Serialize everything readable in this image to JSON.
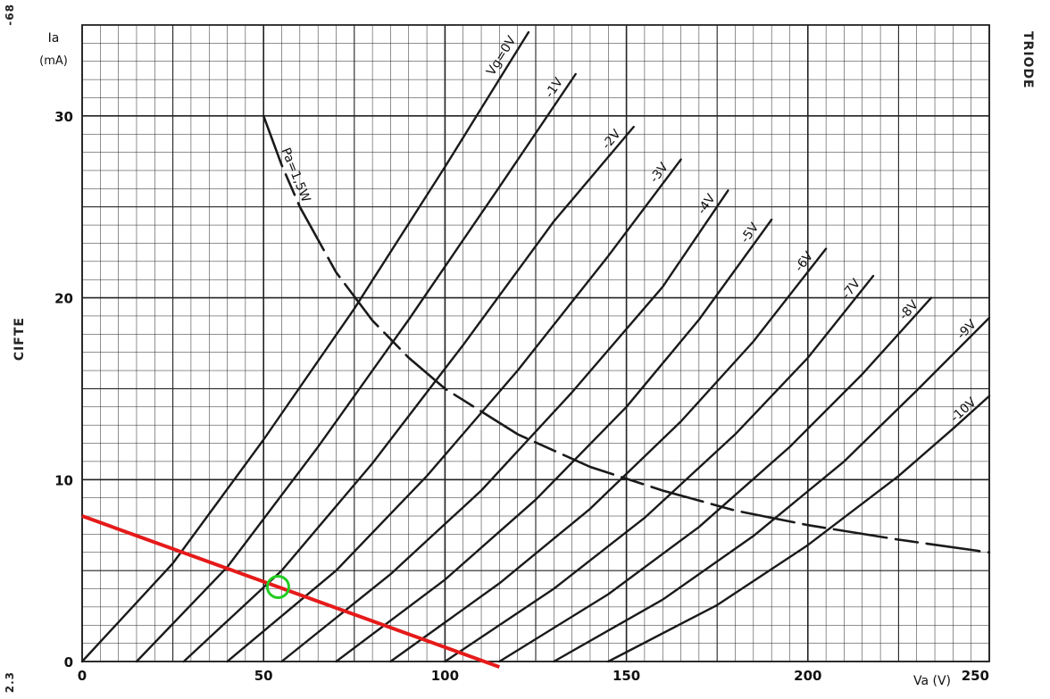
{
  "side_labels": {
    "right": "TRIODE",
    "left": "CIFTE",
    "top_left": "-68",
    "bottom_left": "2.3"
  },
  "chart_data": {
    "type": "line",
    "title": "",
    "xlabel": "Va (V)",
    "ylabel_line1": "Ia",
    "ylabel_line2": "(mA)",
    "xlim": [
      0,
      250
    ],
    "ylim": [
      0,
      35
    ],
    "x_ticks": [
      0,
      50,
      100,
      150,
      200,
      250
    ],
    "y_ticks": [
      0,
      10,
      20,
      30
    ],
    "grid": true,
    "colors": {
      "curves": "#1a1a1a",
      "grid": "#222222",
      "load_line": "#e61a1a",
      "operating_point": "#22cc22"
    },
    "series": [
      {
        "name": "Vg=0V",
        "points": [
          [
            0,
            0
          ],
          [
            25,
            5.4
          ],
          [
            50,
            12.2
          ],
          [
            75,
            19.4
          ],
          [
            100,
            27.2
          ],
          [
            123,
            34.6
          ]
        ]
      },
      {
        "name": "-1V",
        "points": [
          [
            15,
            0
          ],
          [
            40,
            5.2
          ],
          [
            65,
            11.8
          ],
          [
            90,
            18.8
          ],
          [
            115,
            26.1
          ],
          [
            136,
            32.3
          ]
        ]
      },
      {
        "name": "-2V",
        "points": [
          [
            28,
            0
          ],
          [
            55,
            5
          ],
          [
            80,
            10.9
          ],
          [
            105,
            17.4
          ],
          [
            130,
            24.2
          ],
          [
            152,
            29.4
          ]
        ]
      },
      {
        "name": "-3V",
        "points": [
          [
            40,
            0
          ],
          [
            70,
            5
          ],
          [
            95,
            10.2
          ],
          [
            120,
            16
          ],
          [
            145,
            22.3
          ],
          [
            165,
            27.6
          ]
        ]
      },
      {
        "name": "-4V",
        "points": [
          [
            55,
            0
          ],
          [
            85,
            4.8
          ],
          [
            110,
            9.4
          ],
          [
            135,
            14.8
          ],
          [
            160,
            20.6
          ],
          [
            178,
            25.9
          ]
        ]
      },
      {
        "name": "-5V",
        "points": [
          [
            70,
            0
          ],
          [
            100,
            4.5
          ],
          [
            125,
            8.9
          ],
          [
            150,
            14
          ],
          [
            170,
            18.8
          ],
          [
            190,
            24.3
          ]
        ]
      },
      {
        "name": "-6V",
        "points": [
          [
            85,
            0
          ],
          [
            115,
            4.3
          ],
          [
            140,
            8.4
          ],
          [
            165,
            13.2
          ],
          [
            185,
            17.6
          ],
          [
            205,
            22.7
          ]
        ]
      },
      {
        "name": "-7V",
        "points": [
          [
            100,
            0
          ],
          [
            130,
            4
          ],
          [
            155,
            7.9
          ],
          [
            180,
            12.5
          ],
          [
            200,
            16.7
          ],
          [
            218,
            21.2
          ]
        ]
      },
      {
        "name": "-8V",
        "points": [
          [
            115,
            0
          ],
          [
            145,
            3.7
          ],
          [
            170,
            7.4
          ],
          [
            195,
            11.8
          ],
          [
            215,
            15.8
          ],
          [
            234,
            20
          ]
        ]
      },
      {
        "name": "-9V",
        "points": [
          [
            130,
            0
          ],
          [
            160,
            3.4
          ],
          [
            185,
            6.9
          ],
          [
            210,
            11
          ],
          [
            230,
            14.9
          ],
          [
            250,
            18.9
          ]
        ]
      },
      {
        "name": "-10V",
        "points": [
          [
            145,
            0
          ],
          [
            175,
            3.1
          ],
          [
            200,
            6.4
          ],
          [
            225,
            10.2
          ],
          [
            240,
            12.8
          ],
          [
            250,
            14.6
          ]
        ]
      },
      {
        "name": "Pa=1,5W",
        "points": [
          [
            50,
            30
          ],
          [
            55,
            27.3
          ],
          [
            60,
            25
          ],
          [
            70,
            21.4
          ],
          [
            80,
            18.75
          ],
          [
            90,
            16.7
          ],
          [
            100,
            15
          ],
          [
            120,
            12.5
          ],
          [
            140,
            10.7
          ],
          [
            160,
            9.4
          ],
          [
            180,
            8.3
          ],
          [
            200,
            7.5
          ],
          [
            225,
            6.7
          ],
          [
            250,
            6
          ]
        ]
      }
    ],
    "load_line": {
      "points": [
        [
          0,
          8
        ],
        [
          115,
          -0.3
        ]
      ]
    },
    "operating_point": {
      "x": 54,
      "y": 4.1
    }
  }
}
